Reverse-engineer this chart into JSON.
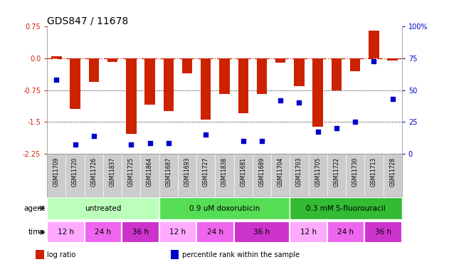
{
  "title": "GDS847 / 11678",
  "samples": [
    "GSM11709",
    "GSM11720",
    "GSM11726",
    "GSM11837",
    "GSM11725",
    "GSM11864",
    "GSM11687",
    "GSM11693",
    "GSM11727",
    "GSM11838",
    "GSM11681",
    "GSM11689",
    "GSM11704",
    "GSM11703",
    "GSM11705",
    "GSM11722",
    "GSM11730",
    "GSM11713",
    "GSM11728"
  ],
  "log_ratios": [
    0.05,
    -1.2,
    -0.55,
    -0.08,
    -1.78,
    -1.1,
    -1.25,
    -0.35,
    -1.45,
    -0.85,
    -1.3,
    -0.85,
    -0.1,
    -0.65,
    -1.62,
    -0.75,
    -0.3,
    0.65,
    -0.05
  ],
  "percentile_ranks": [
    58,
    7,
    14,
    null,
    7,
    8,
    8,
    null,
    15,
    null,
    10,
    10,
    42,
    40,
    17,
    20,
    25,
    73,
    43
  ],
  "ylim_left": [
    -2.25,
    0.75
  ],
  "ylim_right": [
    0,
    100
  ],
  "yticks_left": [
    0.75,
    0.0,
    -0.75,
    -1.5,
    -2.25
  ],
  "yticks_right": [
    100,
    75,
    50,
    25,
    0
  ],
  "ytick_labels_right": [
    "100%",
    "75",
    "50",
    "25",
    "0"
  ],
  "hline_y": 0.0,
  "dotted_lines": [
    -0.75,
    -1.5
  ],
  "bar_color": "#cc2200",
  "dot_color": "#0000cc",
  "agent_groups": [
    {
      "label": "untreated",
      "start": 0,
      "end": 6,
      "color": "#bbffbb"
    },
    {
      "label": "0.9 uM doxorubicin",
      "start": 6,
      "end": 13,
      "color": "#55dd55"
    },
    {
      "label": "0.3 mM 5-fluorouracil",
      "start": 13,
      "end": 19,
      "color": "#33bb33"
    }
  ],
  "time_groups": [
    {
      "label": "12 h",
      "start": 0,
      "end": 2,
      "color": "#ffaaff"
    },
    {
      "label": "24 h",
      "start": 2,
      "end": 4,
      "color": "#ee66ee"
    },
    {
      "label": "36 h",
      "start": 4,
      "end": 6,
      "color": "#cc33cc"
    },
    {
      "label": "12 h",
      "start": 6,
      "end": 8,
      "color": "#ffaaff"
    },
    {
      "label": "24 h",
      "start": 8,
      "end": 10,
      "color": "#ee66ee"
    },
    {
      "label": "36 h",
      "start": 10,
      "end": 13,
      "color": "#cc33cc"
    },
    {
      "label": "12 h",
      "start": 13,
      "end": 15,
      "color": "#ffaaff"
    },
    {
      "label": "24 h",
      "start": 15,
      "end": 17,
      "color": "#ee66ee"
    },
    {
      "label": "36 h",
      "start": 17,
      "end": 19,
      "color": "#cc33cc"
    }
  ],
  "legend_items": [
    {
      "label": "log ratio",
      "color": "#cc2200"
    },
    {
      "label": "percentile rank within the sample",
      "color": "#0000cc"
    }
  ],
  "bar_width": 0.55,
  "dot_size": 18,
  "title_fontsize": 10,
  "sample_fontsize": 5.5,
  "annotation_fontsize": 7.5,
  "bg_color": "#ffffff",
  "sample_bg_color": "#cccccc",
  "sample_text_color": "#000000"
}
